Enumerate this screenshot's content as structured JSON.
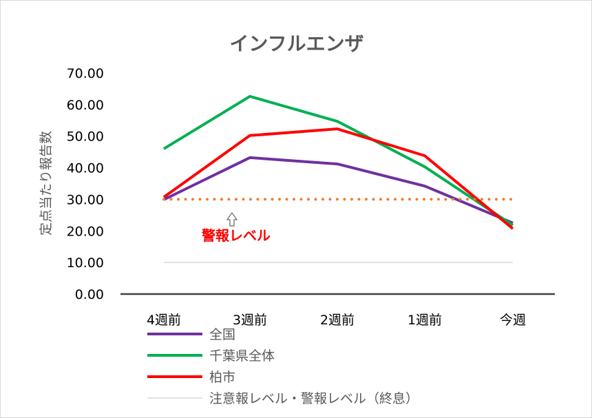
{
  "chart_data": {
    "type": "line",
    "title": "インフルエンザ",
    "ylabel": "定点当たり報告数",
    "xlabel": "",
    "ylim": [
      0,
      70
    ],
    "yticks": [
      "0.00",
      "10.00",
      "20.00",
      "30.00",
      "40.00",
      "50.00",
      "60.00",
      "70.00"
    ],
    "categories": [
      "4週前",
      "3週前",
      "2週前",
      "1週前",
      "今週"
    ],
    "grid": false,
    "legend_position": "bottom",
    "series": [
      {
        "name": "全国",
        "color": "#7030a0",
        "values": [
          29.9,
          43.2,
          41.2,
          34.2,
          22.5
        ]
      },
      {
        "name": "千葉県全体",
        "color": "#00b050",
        "values": [
          46.0,
          62.6,
          54.7,
          40.3,
          21.8
        ]
      },
      {
        "name": "柏市",
        "color": "#ff0000",
        "values": [
          30.7,
          50.2,
          52.3,
          43.8,
          20.7
        ]
      },
      {
        "name": "注意報レベル・警報レベル（終息）",
        "color": "#d9d9d9",
        "values": [
          10,
          10,
          10,
          10,
          10
        ]
      }
    ],
    "reference_line": {
      "value": 30,
      "color": "#ed7d31",
      "style": "dotted"
    },
    "annotation": {
      "text": "警報レベル",
      "color": "#ff0000"
    }
  }
}
